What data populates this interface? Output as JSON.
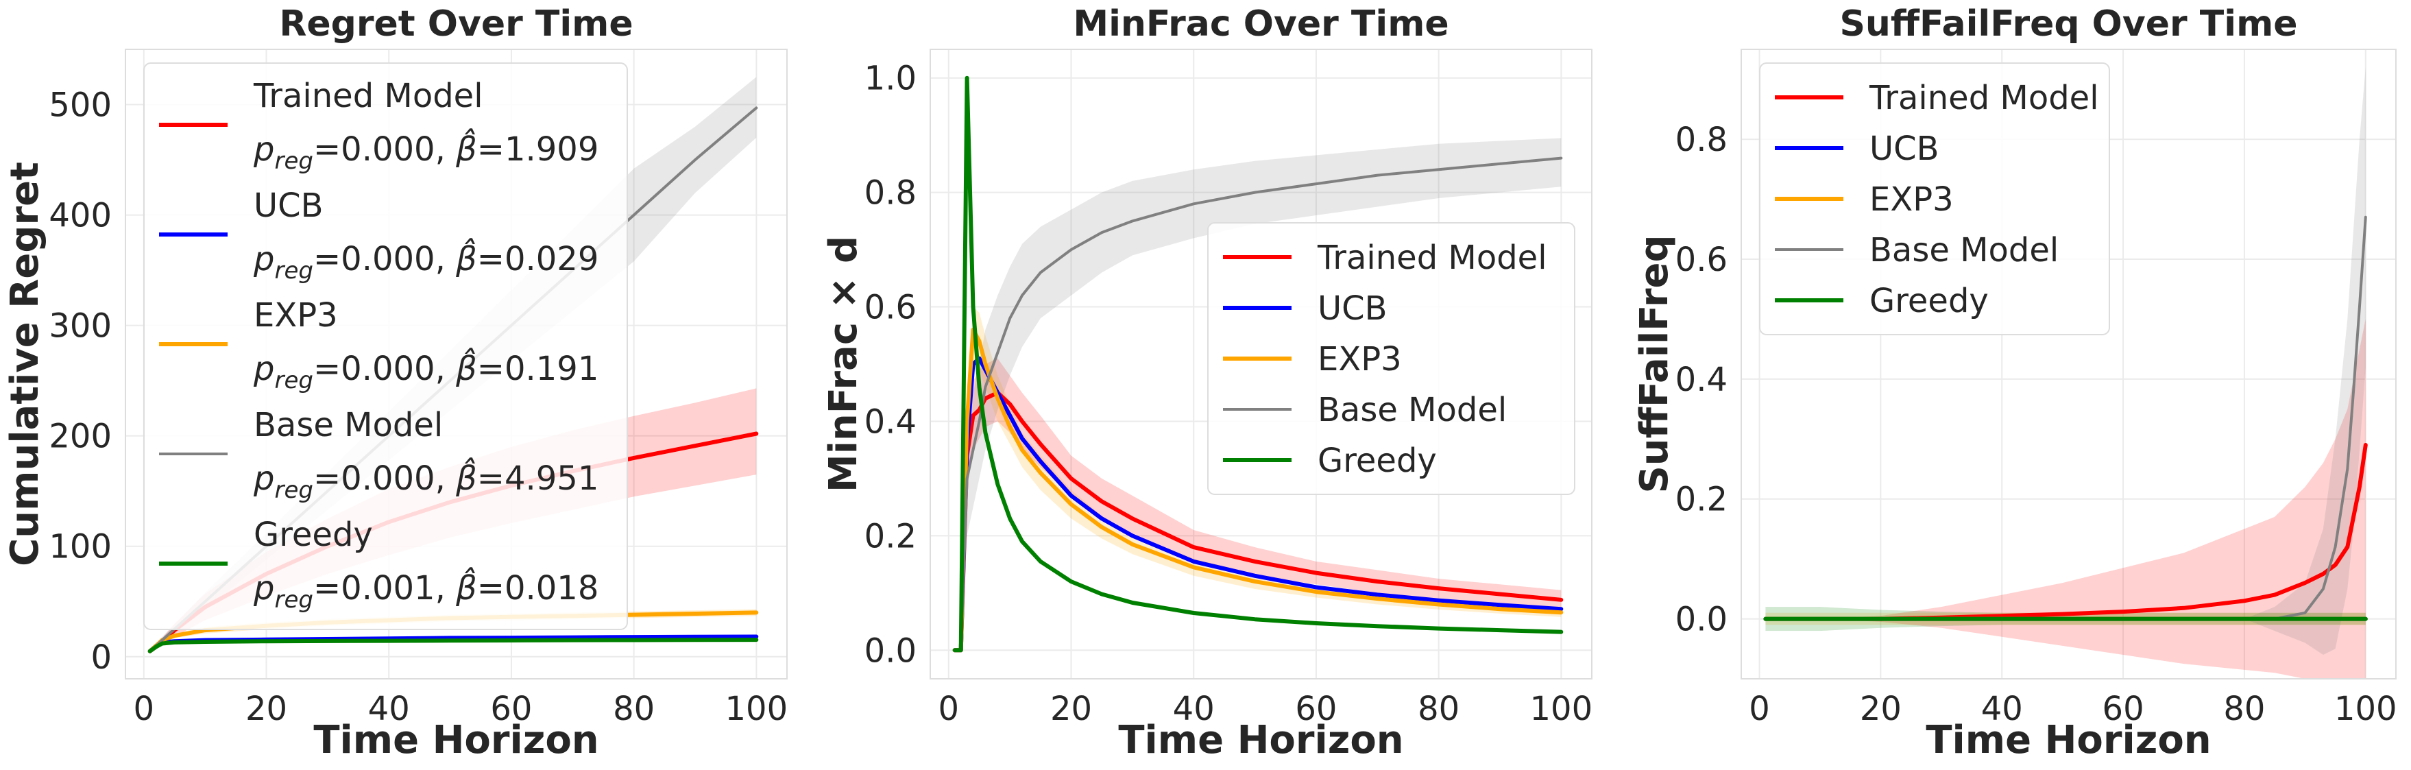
{
  "chart_data": [
    {
      "type": "line",
      "title": "Regret Over Time",
      "xlabel": "Time Horizon",
      "ylabel": "Cumulative Regret",
      "xlim": [
        -3,
        105
      ],
      "ylim": [
        -20,
        550
      ],
      "xticks": [
        0,
        20,
        40,
        60,
        80,
        100
      ],
      "yticks": [
        0,
        100,
        200,
        300,
        400,
        500
      ],
      "legend_position": "upper-left",
      "grid": true,
      "x": [
        1,
        2,
        3,
        5,
        10,
        20,
        30,
        40,
        50,
        60,
        70,
        80,
        90,
        100
      ],
      "series": [
        {
          "name": "Trained Model",
          "annotation": "=0.000, ",
          "beta": "=1.909",
          "color": "#ff0000",
          "width": 6,
          "values": [
            5,
            9,
            14,
            24,
            45,
            75,
            100,
            122,
            140,
            155,
            168,
            180,
            191,
            202
          ],
          "lower": [
            4,
            7,
            11,
            18,
            33,
            55,
            75,
            92,
            108,
            121,
            133,
            145,
            155,
            165
          ],
          "upper": [
            6,
            11,
            17,
            30,
            57,
            95,
            125,
            152,
            172,
            190,
            205,
            218,
            230,
            243
          ]
        },
        {
          "name": "UCB",
          "annotation": "=0.000, ",
          "beta": "=0.029",
          "color": "#0000ff",
          "width": 6,
          "values": [
            5,
            10,
            13,
            14,
            15,
            15.5,
            16,
            16.5,
            17,
            17.2,
            17.5,
            17.8,
            18,
            18.2
          ],
          "lower": [
            4,
            9,
            12,
            13,
            14,
            14.5,
            15,
            15.3,
            15.7,
            16,
            16.3,
            16.5,
            16.8,
            17
          ],
          "upper": [
            6,
            11,
            14,
            15,
            16,
            16.5,
            17,
            17.7,
            18.3,
            18.5,
            18.7,
            19,
            19.2,
            19.4
          ]
        },
        {
          "name": "EXP3",
          "annotation": "=0.000, ",
          "beta": "=0.191",
          "color": "#ffa500",
          "width": 6,
          "values": [
            5,
            10,
            15,
            19,
            24,
            28,
            31,
            33,
            35,
            36,
            37,
            38,
            39,
            40
          ],
          "lower": [
            4,
            9,
            13,
            17,
            21,
            25,
            28,
            30,
            32,
            33,
            34,
            35,
            36,
            37
          ],
          "upper": [
            6,
            11,
            17,
            21,
            27,
            31,
            34,
            36,
            38,
            39,
            40,
            41,
            42,
            43
          ]
        },
        {
          "name": "Base Model",
          "annotation": "=0.000, ",
          "beta": "=4.951",
          "color": "#808080",
          "width": 4,
          "values": [
            5,
            10,
            15,
            25,
            50,
            100,
            150,
            200,
            250,
            300,
            350,
            400,
            450,
            497
          ],
          "lower": [
            4,
            8,
            12,
            21,
            42,
            88,
            133,
            178,
            223,
            268,
            313,
            358,
            420,
            470
          ],
          "upper": [
            6,
            12,
            18,
            29,
            58,
            112,
            167,
            222,
            277,
            332,
            387,
            442,
            480,
            525
          ]
        },
        {
          "name": "Greedy",
          "annotation": "=0.001, ",
          "beta": "=0.018",
          "color": "#008000",
          "width": 6,
          "values": [
            5,
            9,
            12,
            13,
            13.5,
            14,
            14.2,
            14.4,
            14.6,
            14.8,
            15,
            15.1,
            15.2,
            15.3
          ],
          "lower": [
            4,
            8,
            11,
            12,
            12.5,
            13,
            13.2,
            13.4,
            13.6,
            13.8,
            14,
            14.1,
            14.2,
            14.3
          ],
          "upper": [
            6,
            10,
            13,
            14,
            14.5,
            15,
            15.2,
            15.4,
            15.6,
            15.8,
            16,
            16.1,
            16.2,
            16.3
          ]
        }
      ]
    },
    {
      "type": "line",
      "title": "MinFrac Over Time",
      "xlabel": "Time Horizon",
      "ylabel": "MinFrac × d",
      "xlim": [
        -3,
        105
      ],
      "ylim": [
        -0.05,
        1.05
      ],
      "xticks": [
        0,
        20,
        40,
        60,
        80,
        100
      ],
      "yticks": [
        0.0,
        0.2,
        0.4,
        0.6,
        0.8,
        1.0
      ],
      "legend_position": "center-right",
      "grid": true,
      "x": [
        1,
        2,
        3,
        4,
        5,
        6,
        8,
        10,
        12,
        15,
        20,
        25,
        30,
        40,
        50,
        60,
        70,
        80,
        90,
        100
      ],
      "series": [
        {
          "name": "Trained Model",
          "color": "#ff0000",
          "width": 6,
          "values": [
            0,
            0,
            0.34,
            0.41,
            0.42,
            0.44,
            0.45,
            0.43,
            0.4,
            0.36,
            0.3,
            0.26,
            0.23,
            0.18,
            0.155,
            0.135,
            0.12,
            0.108,
            0.098,
            0.088
          ],
          "lower": [
            0,
            0,
            0.28,
            0.35,
            0.37,
            0.39,
            0.4,
            0.38,
            0.35,
            0.32,
            0.27,
            0.23,
            0.2,
            0.155,
            0.13,
            0.115,
            0.1,
            0.09,
            0.08,
            0.072
          ],
          "upper": [
            0,
            0,
            0.4,
            0.47,
            0.49,
            0.5,
            0.51,
            0.48,
            0.45,
            0.41,
            0.34,
            0.3,
            0.27,
            0.21,
            0.18,
            0.155,
            0.14,
            0.125,
            0.115,
            0.105
          ]
        },
        {
          "name": "UCB",
          "color": "#0000ff",
          "width": 6,
          "values": [
            0,
            0,
            0.36,
            0.5,
            0.51,
            0.49,
            0.45,
            0.41,
            0.37,
            0.33,
            0.27,
            0.23,
            0.2,
            0.155,
            0.13,
            0.11,
            0.097,
            0.087,
            0.079,
            0.072
          ],
          "lower": [
            0,
            0,
            0.36,
            0.5,
            0.51,
            0.49,
            0.45,
            0.41,
            0.37,
            0.33,
            0.27,
            0.23,
            0.2,
            0.155,
            0.13,
            0.11,
            0.097,
            0.087,
            0.079,
            0.072
          ],
          "upper": [
            0,
            0,
            0.36,
            0.5,
            0.51,
            0.49,
            0.45,
            0.41,
            0.37,
            0.33,
            0.27,
            0.23,
            0.2,
            0.155,
            0.13,
            0.11,
            0.097,
            0.087,
            0.079,
            0.072
          ]
        },
        {
          "name": "EXP3",
          "color": "#ffa500",
          "width": 6,
          "values": [
            0,
            0,
            0.4,
            0.56,
            0.54,
            0.5,
            0.44,
            0.39,
            0.35,
            0.31,
            0.255,
            0.215,
            0.185,
            0.145,
            0.12,
            0.102,
            0.09,
            0.08,
            0.072,
            0.066
          ],
          "lower": [
            0,
            0,
            0.34,
            0.5,
            0.49,
            0.46,
            0.4,
            0.36,
            0.32,
            0.28,
            0.23,
            0.195,
            0.168,
            0.13,
            0.107,
            0.092,
            0.08,
            0.071,
            0.064,
            0.058
          ],
          "upper": [
            0,
            0,
            0.46,
            0.6,
            0.59,
            0.55,
            0.48,
            0.43,
            0.38,
            0.34,
            0.28,
            0.235,
            0.202,
            0.16,
            0.133,
            0.112,
            0.1,
            0.089,
            0.08,
            0.074
          ]
        },
        {
          "name": "Base Model",
          "color": "#808080",
          "width": 4,
          "values": [
            0,
            0,
            0.3,
            0.35,
            0.4,
            0.46,
            0.52,
            0.58,
            0.62,
            0.66,
            0.7,
            0.73,
            0.75,
            0.78,
            0.8,
            0.815,
            0.83,
            0.84,
            0.85,
            0.86
          ],
          "lower": [
            0,
            0,
            0.2,
            0.25,
            0.3,
            0.35,
            0.42,
            0.48,
            0.53,
            0.58,
            0.62,
            0.66,
            0.69,
            0.72,
            0.745,
            0.76,
            0.775,
            0.79,
            0.8,
            0.81
          ],
          "upper": [
            0,
            0,
            0.4,
            0.45,
            0.5,
            0.56,
            0.62,
            0.67,
            0.71,
            0.74,
            0.77,
            0.8,
            0.82,
            0.84,
            0.855,
            0.865,
            0.875,
            0.885,
            0.89,
            0.895
          ]
        },
        {
          "name": "Greedy",
          "color": "#008000",
          "width": 6,
          "values": [
            0,
            0,
            1.0,
            0.6,
            0.46,
            0.38,
            0.29,
            0.23,
            0.19,
            0.155,
            0.12,
            0.098,
            0.083,
            0.065,
            0.054,
            0.047,
            0.042,
            0.038,
            0.035,
            0.032
          ],
          "lower": [
            0,
            0,
            1.0,
            0.6,
            0.46,
            0.38,
            0.29,
            0.23,
            0.19,
            0.155,
            0.12,
            0.098,
            0.083,
            0.065,
            0.054,
            0.047,
            0.042,
            0.038,
            0.035,
            0.032
          ],
          "upper": [
            0,
            0,
            1.0,
            0.6,
            0.46,
            0.38,
            0.29,
            0.23,
            0.19,
            0.155,
            0.12,
            0.098,
            0.083,
            0.065,
            0.054,
            0.047,
            0.042,
            0.038,
            0.035,
            0.032
          ]
        }
      ]
    },
    {
      "type": "line",
      "title": "SuffFailFreq Over Time",
      "xlabel": "Time Horizon",
      "ylabel": "SuffFailFreq",
      "xlim": [
        -3,
        105
      ],
      "ylim": [
        -0.1,
        0.95
      ],
      "xticks": [
        0,
        20,
        40,
        60,
        80,
        100
      ],
      "yticks": [
        0.0,
        0.2,
        0.4,
        0.6,
        0.8
      ],
      "legend_position": "upper-left",
      "grid": true,
      "x": [
        1,
        10,
        20,
        30,
        40,
        50,
        60,
        70,
        80,
        85,
        90,
        93,
        95,
        97,
        98,
        99,
        100
      ],
      "series": [
        {
          "name": "Trained Model",
          "color": "#ff0000",
          "width": 6,
          "values": [
            0,
            0,
            0,
            0.002,
            0.005,
            0.008,
            0.012,
            0.018,
            0.03,
            0.04,
            0.06,
            0.075,
            0.09,
            0.12,
            0.17,
            0.22,
            0.29
          ],
          "lower": [
            0,
            0,
            -0.005,
            -0.015,
            -0.03,
            -0.045,
            -0.06,
            -0.075,
            -0.085,
            -0.09,
            -0.1,
            -0.1,
            -0.1,
            -0.1,
            -0.1,
            -0.1,
            -0.1
          ],
          "upper": [
            0,
            0,
            0.005,
            0.02,
            0.04,
            0.06,
            0.085,
            0.11,
            0.15,
            0.17,
            0.22,
            0.26,
            0.3,
            0.35,
            0.4,
            0.45,
            0.5
          ]
        },
        {
          "name": "UCB",
          "color": "#0000ff",
          "width": 6,
          "values": [
            0,
            0,
            0,
            0,
            0,
            0,
            0,
            0,
            0,
            0,
            0,
            0,
            0,
            0,
            0,
            0,
            0
          ],
          "lower": [
            0,
            0,
            0,
            0,
            0,
            0,
            0,
            0,
            0,
            0,
            0,
            0,
            0,
            0,
            0,
            0,
            0
          ],
          "upper": [
            0,
            0,
            0,
            0,
            0,
            0,
            0,
            0,
            0,
            0,
            0,
            0,
            0,
            0,
            0,
            0,
            0
          ]
        },
        {
          "name": "EXP3",
          "color": "#ffa500",
          "width": 6,
          "values": [
            0,
            0,
            0,
            0,
            0,
            0,
            0,
            0,
            0,
            0,
            0,
            0,
            0,
            0,
            0,
            0,
            0
          ],
          "lower": [
            -0.01,
            -0.01,
            -0.01,
            -0.01,
            -0.01,
            -0.01,
            -0.01,
            -0.01,
            -0.01,
            -0.01,
            -0.01,
            -0.01,
            -0.01,
            -0.01,
            -0.01,
            -0.01,
            -0.01
          ],
          "upper": [
            0.01,
            0.01,
            0.01,
            0.01,
            0.01,
            0.01,
            0.01,
            0.01,
            0.01,
            0.01,
            0.01,
            0.01,
            0.01,
            0.01,
            0.01,
            0.01,
            0.01
          ]
        },
        {
          "name": "Base Model",
          "color": "#808080",
          "width": 4,
          "values": [
            0,
            0,
            0,
            0,
            0,
            0,
            0,
            0,
            0,
            0,
            0.01,
            0.05,
            0.12,
            0.25,
            0.38,
            0.52,
            0.67
          ],
          "lower": [
            0,
            0,
            0,
            0,
            0,
            0,
            0,
            0,
            0,
            -0.02,
            -0.04,
            -0.06,
            -0.05,
            0.05,
            0.15,
            0.28,
            0.42
          ],
          "upper": [
            0,
            0,
            0,
            0,
            0,
            0,
            0,
            0,
            0,
            0.02,
            0.06,
            0.15,
            0.3,
            0.5,
            0.65,
            0.8,
            0.92
          ]
        },
        {
          "name": "Greedy",
          "color": "#008000",
          "width": 6,
          "values": [
            0,
            0,
            0,
            0,
            0,
            0,
            0,
            0,
            0,
            0,
            0,
            0,
            0,
            0,
            0,
            0,
            0
          ],
          "lower": [
            -0.02,
            -0.02,
            -0.015,
            -0.012,
            -0.01,
            -0.01,
            -0.01,
            -0.01,
            -0.01,
            -0.01,
            -0.01,
            -0.01,
            -0.01,
            -0.01,
            -0.01,
            -0.01,
            -0.01
          ],
          "upper": [
            0.02,
            0.02,
            0.015,
            0.012,
            0.01,
            0.01,
            0.01,
            0.01,
            0.01,
            0.01,
            0.01,
            0.01,
            0.01,
            0.01,
            0.01,
            0.01,
            0.01
          ]
        }
      ]
    }
  ]
}
